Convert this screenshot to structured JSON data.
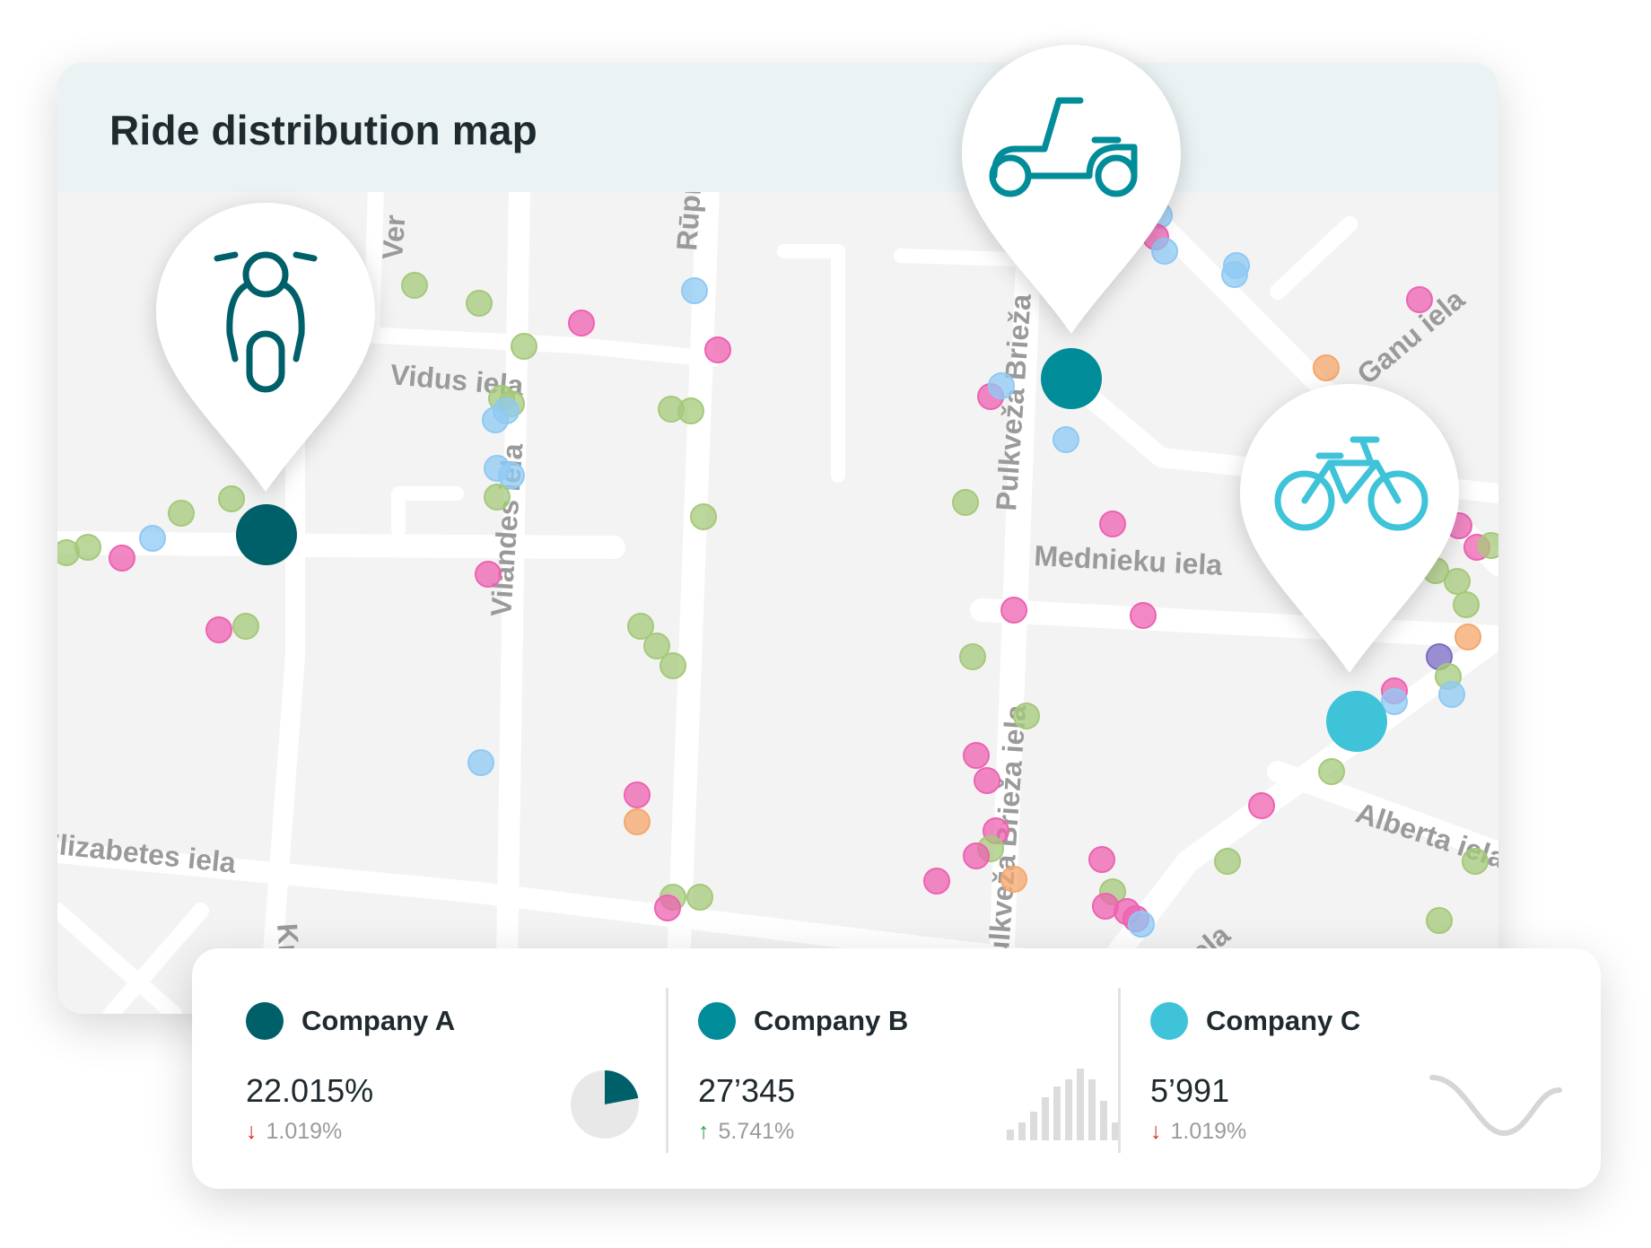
{
  "map": {
    "title": "Ride distribution map",
    "streets": [
      "Vidus iela",
      "Vilandes iela",
      "Rūpniecības",
      "Pulkveža Brieža",
      "Pulkveža Brieža iela",
      "Mednieku iela",
      "Ganu iela",
      "Alberta iela",
      "Elizabetes iela",
      "Ver",
      "Kr",
      "iela"
    ]
  },
  "colors": {
    "company_a": "#00606a",
    "company_b": "#008c99",
    "company_c": "#3ec3d8",
    "point_green": "#a5c97a",
    "point_pink": "#ee62b2",
    "point_blue": "#8fc9f4",
    "point_orange": "#f4a76b",
    "point_purple": "#7b6cc4"
  },
  "pins": [
    {
      "icon": "scooter-icon",
      "company": "Company A"
    },
    {
      "icon": "moped-icon",
      "company": "Company B"
    },
    {
      "icon": "bicycle-icon",
      "company": "Company C"
    }
  ],
  "stats": [
    {
      "name": "Company A",
      "value": "22.015%",
      "direction": "down",
      "change": "1.019%",
      "chart": "pie",
      "pie_fraction": 0.22
    },
    {
      "name": "Company B",
      "value": "27’345",
      "direction": "up",
      "change": "5.741%",
      "chart": "bars",
      "bars": [
        0.15,
        0.25,
        0.4,
        0.6,
        0.75,
        0.85,
        1.0,
        0.85,
        0.55,
        0.25
      ]
    },
    {
      "name": "Company C",
      "value": "5’991",
      "direction": "down",
      "change": "1.019%",
      "chart": "wave"
    }
  ]
}
